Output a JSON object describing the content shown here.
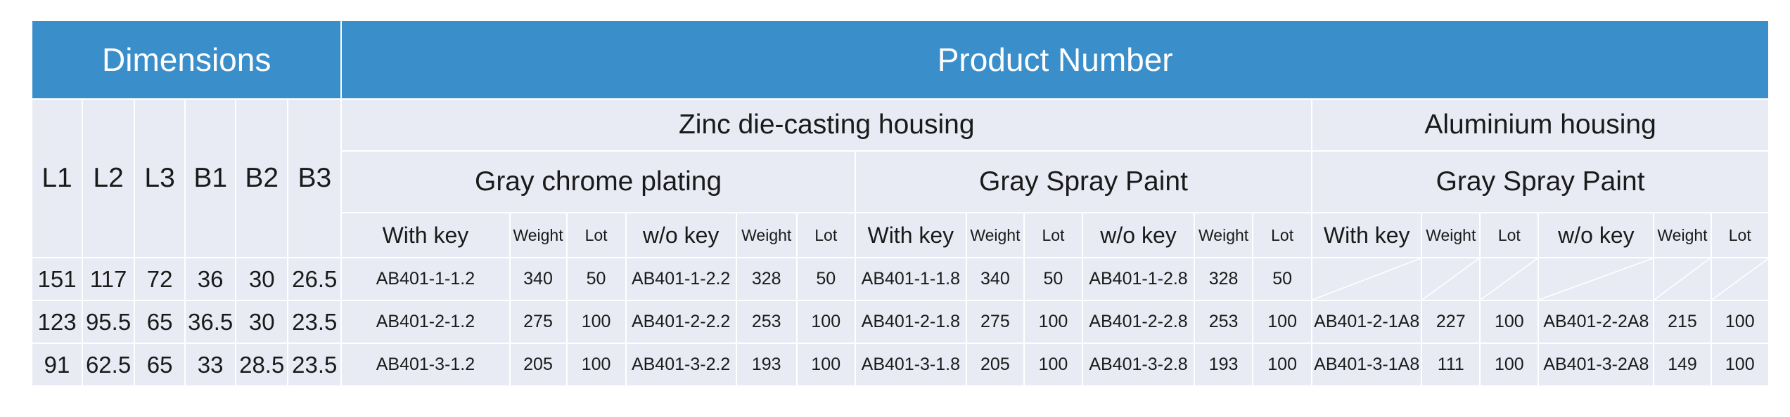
{
  "header": {
    "dimensions": "Dimensions",
    "product_number": "Product Number"
  },
  "dim_columns": [
    "L1",
    "L2",
    "L3",
    "B1",
    "B2",
    "B3"
  ],
  "housings": {
    "zinc": "Zinc die-casting housing",
    "aluminium": "Aluminium housing"
  },
  "finishes": {
    "zinc_chrome": "Gray chrome plating",
    "zinc_paint": "Gray Spray Paint",
    "alu_paint": "Gray Spray Paint"
  },
  "sub_columns": {
    "with_key": "With key",
    "weight": "Weight",
    "lot": "Lot",
    "wo_key": "w/o key"
  },
  "rows": [
    {
      "dims": [
        "151",
        "117",
        "72",
        "36",
        "30",
        "26.5"
      ],
      "products": [
        "AB401-1-1.2",
        "340",
        "50",
        "AB401-1-2.2",
        "328",
        "50",
        "AB401-1-1.8",
        "340",
        "50",
        "AB401-1-2.8",
        "328",
        "50",
        "",
        "",
        "",
        "",
        "",
        ""
      ]
    },
    {
      "dims": [
        "123",
        "95.5",
        "65",
        "36.5",
        "30",
        "23.5"
      ],
      "products": [
        "AB401-2-1.2",
        "275",
        "100",
        "AB401-2-2.2",
        "253",
        "100",
        "AB401-2-1.8",
        "275",
        "100",
        "AB401-2-2.8",
        "253",
        "100",
        "AB401-2-1A8",
        "227",
        "100",
        "AB401-2-2A8",
        "215",
        "100"
      ]
    },
    {
      "dims": [
        "91",
        "62.5",
        "65",
        "33",
        "28.5",
        "23.5"
      ],
      "products": [
        "AB401-3-1.2",
        "205",
        "100",
        "AB401-3-2.2",
        "193",
        "100",
        "AB401-3-1.8",
        "205",
        "100",
        "AB401-3-2.8",
        "193",
        "100",
        "AB401-3-1A8",
        "111",
        "100",
        "AB401-3-2A8",
        "149",
        "100"
      ]
    }
  ]
}
